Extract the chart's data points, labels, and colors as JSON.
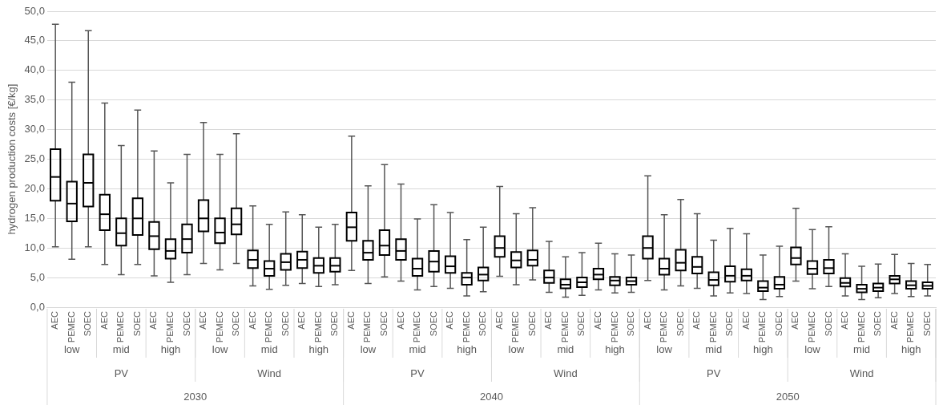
{
  "chart_data": {
    "type": "box",
    "ylabel": "hydrogen production costs [€/kg]",
    "categories": [
      "AEC",
      "PEMEC",
      "SOEC",
      "AEC",
      "PEMEC",
      "SOEC",
      "AEC",
      "PEMEC",
      "SOEC",
      "AEC",
      "PEMEC",
      "SOEC",
      "AEC",
      "PEMEC",
      "SOEC",
      "AEC",
      "PEMEC",
      "SOEC",
      "AEC",
      "PEMEC",
      "SOEC",
      "AEC",
      "PEMEC",
      "SOEC",
      "AEC",
      "PEMEC",
      "SOEC",
      "AEC",
      "PEMEC",
      "SOEC",
      "AEC",
      "PEMEC",
      "SOEC",
      "AEC",
      "PEMEC",
      "SOEC",
      "AEC",
      "PEMEC",
      "SOEC",
      "AEC",
      "PEMEC",
      "SOEC",
      "AEC",
      "PEMEC",
      "SOEC",
      "AEC",
      "PEMEC",
      "SOEC",
      "AEC",
      "PEMEC",
      "SOEC",
      "AEC",
      "PEMEC",
      "SOEC"
    ],
    "annotations": [
      "low",
      "mid",
      "high",
      "low",
      "mid",
      "high",
      "low",
      "mid",
      "high",
      "low",
      "mid",
      "high",
      "low",
      "mid",
      "high",
      "low",
      "mid",
      "high",
      "PV",
      "Wind",
      "PV",
      "Wind",
      "PV",
      "Wind",
      "2030",
      "2040",
      "2050"
    ],
    "series": [
      {
        "color": "#000000",
        "boxes": [
          {
            "low": 10.2,
            "q1": 18,
            "median": 22,
            "q3": 26.7,
            "high": 47.8
          },
          {
            "low": 8.1,
            "q1": 14.5,
            "median": 17.5,
            "q3": 21.2,
            "high": 38
          },
          {
            "low": 10.2,
            "q1": 17,
            "median": 21,
            "q3": 25.8,
            "high": 46.7
          },
          {
            "low": 7.2,
            "q1": 13,
            "median": 15.7,
            "q3": 19,
            "high": 34.5
          },
          {
            "low": 5.5,
            "q1": 10.4,
            "median": 12.5,
            "q3": 15,
            "high": 27.3
          },
          {
            "low": 7.2,
            "q1": 12.2,
            "median": 15,
            "q3": 18.4,
            "high": 33.3
          },
          {
            "low": 5.3,
            "q1": 9.8,
            "median": 12,
            "q3": 14.4,
            "high": 26.4
          },
          {
            "low": 4.2,
            "q1": 8.2,
            "median": 9.5,
            "q3": 11.5,
            "high": 21
          },
          {
            "low": 5.5,
            "q1": 9.2,
            "median": 11.5,
            "q3": 14,
            "high": 25.8
          },
          {
            "low": 7.4,
            "q1": 12.8,
            "median": 15,
            "q3": 18.1,
            "high": 31.2
          },
          {
            "low": 6.3,
            "q1": 10.8,
            "median": 12.6,
            "q3": 15,
            "high": 25.8
          },
          {
            "low": 7.4,
            "q1": 12.3,
            "median": 14,
            "q3": 16.7,
            "high": 29.3
          },
          {
            "low": 3.6,
            "q1": 6.6,
            "median": 8,
            "q3": 9.6,
            "high": 17.1
          },
          {
            "low": 3,
            "q1": 5.3,
            "median": 6.5,
            "q3": 7.8,
            "high": 14
          },
          {
            "low": 3.7,
            "q1": 6.3,
            "median": 7.6,
            "q3": 9,
            "high": 16.1
          },
          {
            "low": 4,
            "q1": 6.6,
            "median": 8,
            "q3": 9.4,
            "high": 15.6
          },
          {
            "low": 3.5,
            "q1": 5.8,
            "median": 7,
            "q3": 8.3,
            "high": 13.5
          },
          {
            "low": 3.8,
            "q1": 6,
            "median": 7,
            "q3": 8.3,
            "high": 14
          },
          {
            "low": 6.2,
            "q1": 11.2,
            "median": 13.5,
            "q3": 16,
            "high": 28.9
          },
          {
            "low": 4,
            "q1": 8,
            "median": 9.2,
            "q3": 11.2,
            "high": 20.5
          },
          {
            "low": 5.1,
            "q1": 8.8,
            "median": 10.4,
            "q3": 13,
            "high": 24.1
          },
          {
            "low": 4.4,
            "q1": 8,
            "median": 9.5,
            "q3": 11.5,
            "high": 20.8
          },
          {
            "low": 2.9,
            "q1": 5.3,
            "median": 6.5,
            "q3": 8.2,
            "high": 14.9
          },
          {
            "low": 3.5,
            "q1": 6,
            "median": 7.7,
            "q3": 9.5,
            "high": 17.3
          },
          {
            "low": 3.2,
            "q1": 5.8,
            "median": 6.9,
            "q3": 8.6,
            "high": 16
          },
          {
            "low": 1.9,
            "q1": 3.8,
            "median": 5,
            "q3": 5.8,
            "high": 11.4
          },
          {
            "low": 2.6,
            "q1": 4.5,
            "median": 5.5,
            "q3": 6.7,
            "high": 13.5
          },
          {
            "low": 5.2,
            "q1": 8.5,
            "median": 10,
            "q3": 12,
            "high": 20.4
          },
          {
            "low": 3.8,
            "q1": 6.7,
            "median": 7.9,
            "q3": 9.3,
            "high": 15.8
          },
          {
            "low": 4.6,
            "q1": 7,
            "median": 8,
            "q3": 9.6,
            "high": 16.8
          },
          {
            "low": 2.5,
            "q1": 4.1,
            "median": 5,
            "q3": 6.2,
            "high": 11.1
          },
          {
            "low": 1.7,
            "q1": 3.2,
            "median": 3.8,
            "q3": 4.7,
            "high": 8.5
          },
          {
            "low": 2,
            "q1": 3.4,
            "median": 4.2,
            "q3": 5,
            "high": 9.2
          },
          {
            "low": 2.9,
            "q1": 4.7,
            "median": 5.5,
            "q3": 6.5,
            "high": 10.8
          },
          {
            "low": 2.4,
            "q1": 3.7,
            "median": 4.5,
            "q3": 5.1,
            "high": 9
          },
          {
            "low": 2.5,
            "q1": 3.8,
            "median": 4.4,
            "q3": 5,
            "high": 8.8
          },
          {
            "low": 4.5,
            "q1": 8.2,
            "median": 10,
            "q3": 12,
            "high": 22.2
          },
          {
            "low": 2.9,
            "q1": 5.5,
            "median": 6.5,
            "q3": 8.2,
            "high": 15.6
          },
          {
            "low": 3.6,
            "q1": 6.2,
            "median": 7.5,
            "q3": 9.7,
            "high": 18.2
          },
          {
            "low": 3.2,
            "q1": 5.7,
            "median": 6.8,
            "q3": 8.5,
            "high": 15.8
          },
          {
            "low": 1.9,
            "q1": 3.7,
            "median": 4.6,
            "q3": 5.9,
            "high": 11.3
          },
          {
            "low": 2.4,
            "q1": 4.3,
            "median": 5.3,
            "q3": 6.9,
            "high": 13.3
          },
          {
            "low": 2.3,
            "q1": 4.5,
            "median": 5.3,
            "q3": 6.4,
            "high": 12.4
          },
          {
            "low": 1.3,
            "q1": 2.7,
            "median": 3.3,
            "q3": 4.4,
            "high": 8.8
          },
          {
            "low": 1.8,
            "q1": 3.1,
            "median": 3.8,
            "q3": 5.1,
            "high": 10.3
          },
          {
            "low": 4.4,
            "q1": 7.2,
            "median": 8.3,
            "q3": 10.1,
            "high": 16.7
          },
          {
            "low": 3.1,
            "q1": 5.6,
            "median": 6.5,
            "q3": 7.8,
            "high": 13.1
          },
          {
            "low": 3.5,
            "q1": 5.7,
            "median": 6.6,
            "q3": 8,
            "high": 13.6
          },
          {
            "low": 1.9,
            "q1": 3.5,
            "median": 4.1,
            "q3": 4.9,
            "high": 9
          },
          {
            "low": 1.3,
            "q1": 2.5,
            "median": 3.1,
            "q3": 3.8,
            "high": 6.9
          },
          {
            "low": 1.6,
            "q1": 2.7,
            "median": 3.3,
            "q3": 4,
            "high": 7.3
          },
          {
            "low": 2.3,
            "q1": 4,
            "median": 4.7,
            "q3": 5.3,
            "high": 8.9
          },
          {
            "low": 1.8,
            "q1": 3.1,
            "median": 3.7,
            "q3": 4.4,
            "high": 7.4
          },
          {
            "low": 1.9,
            "q1": 3.1,
            "median": 3.6,
            "q3": 4.2,
            "high": 7.2
          }
        ]
      }
    ],
    "ylim": [
      0,
      50
    ],
    "yticks": [
      {
        "value": 0,
        "label": "0,0"
      },
      {
        "value": 5,
        "label": "5,0"
      },
      {
        "value": 10,
        "label": "10,0"
      },
      {
        "value": 15,
        "label": "15,0"
      },
      {
        "value": 20,
        "label": "20,0"
      },
      {
        "value": 25,
        "label": "25,0"
      },
      {
        "value": 30,
        "label": "30,0"
      },
      {
        "value": 35,
        "label": "35,0"
      },
      {
        "value": 40,
        "label": "40,0"
      },
      {
        "value": 45,
        "label": "45,0"
      },
      {
        "value": 50,
        "label": "50,0"
      }
    ],
    "grid": "y",
    "legend": false
  }
}
